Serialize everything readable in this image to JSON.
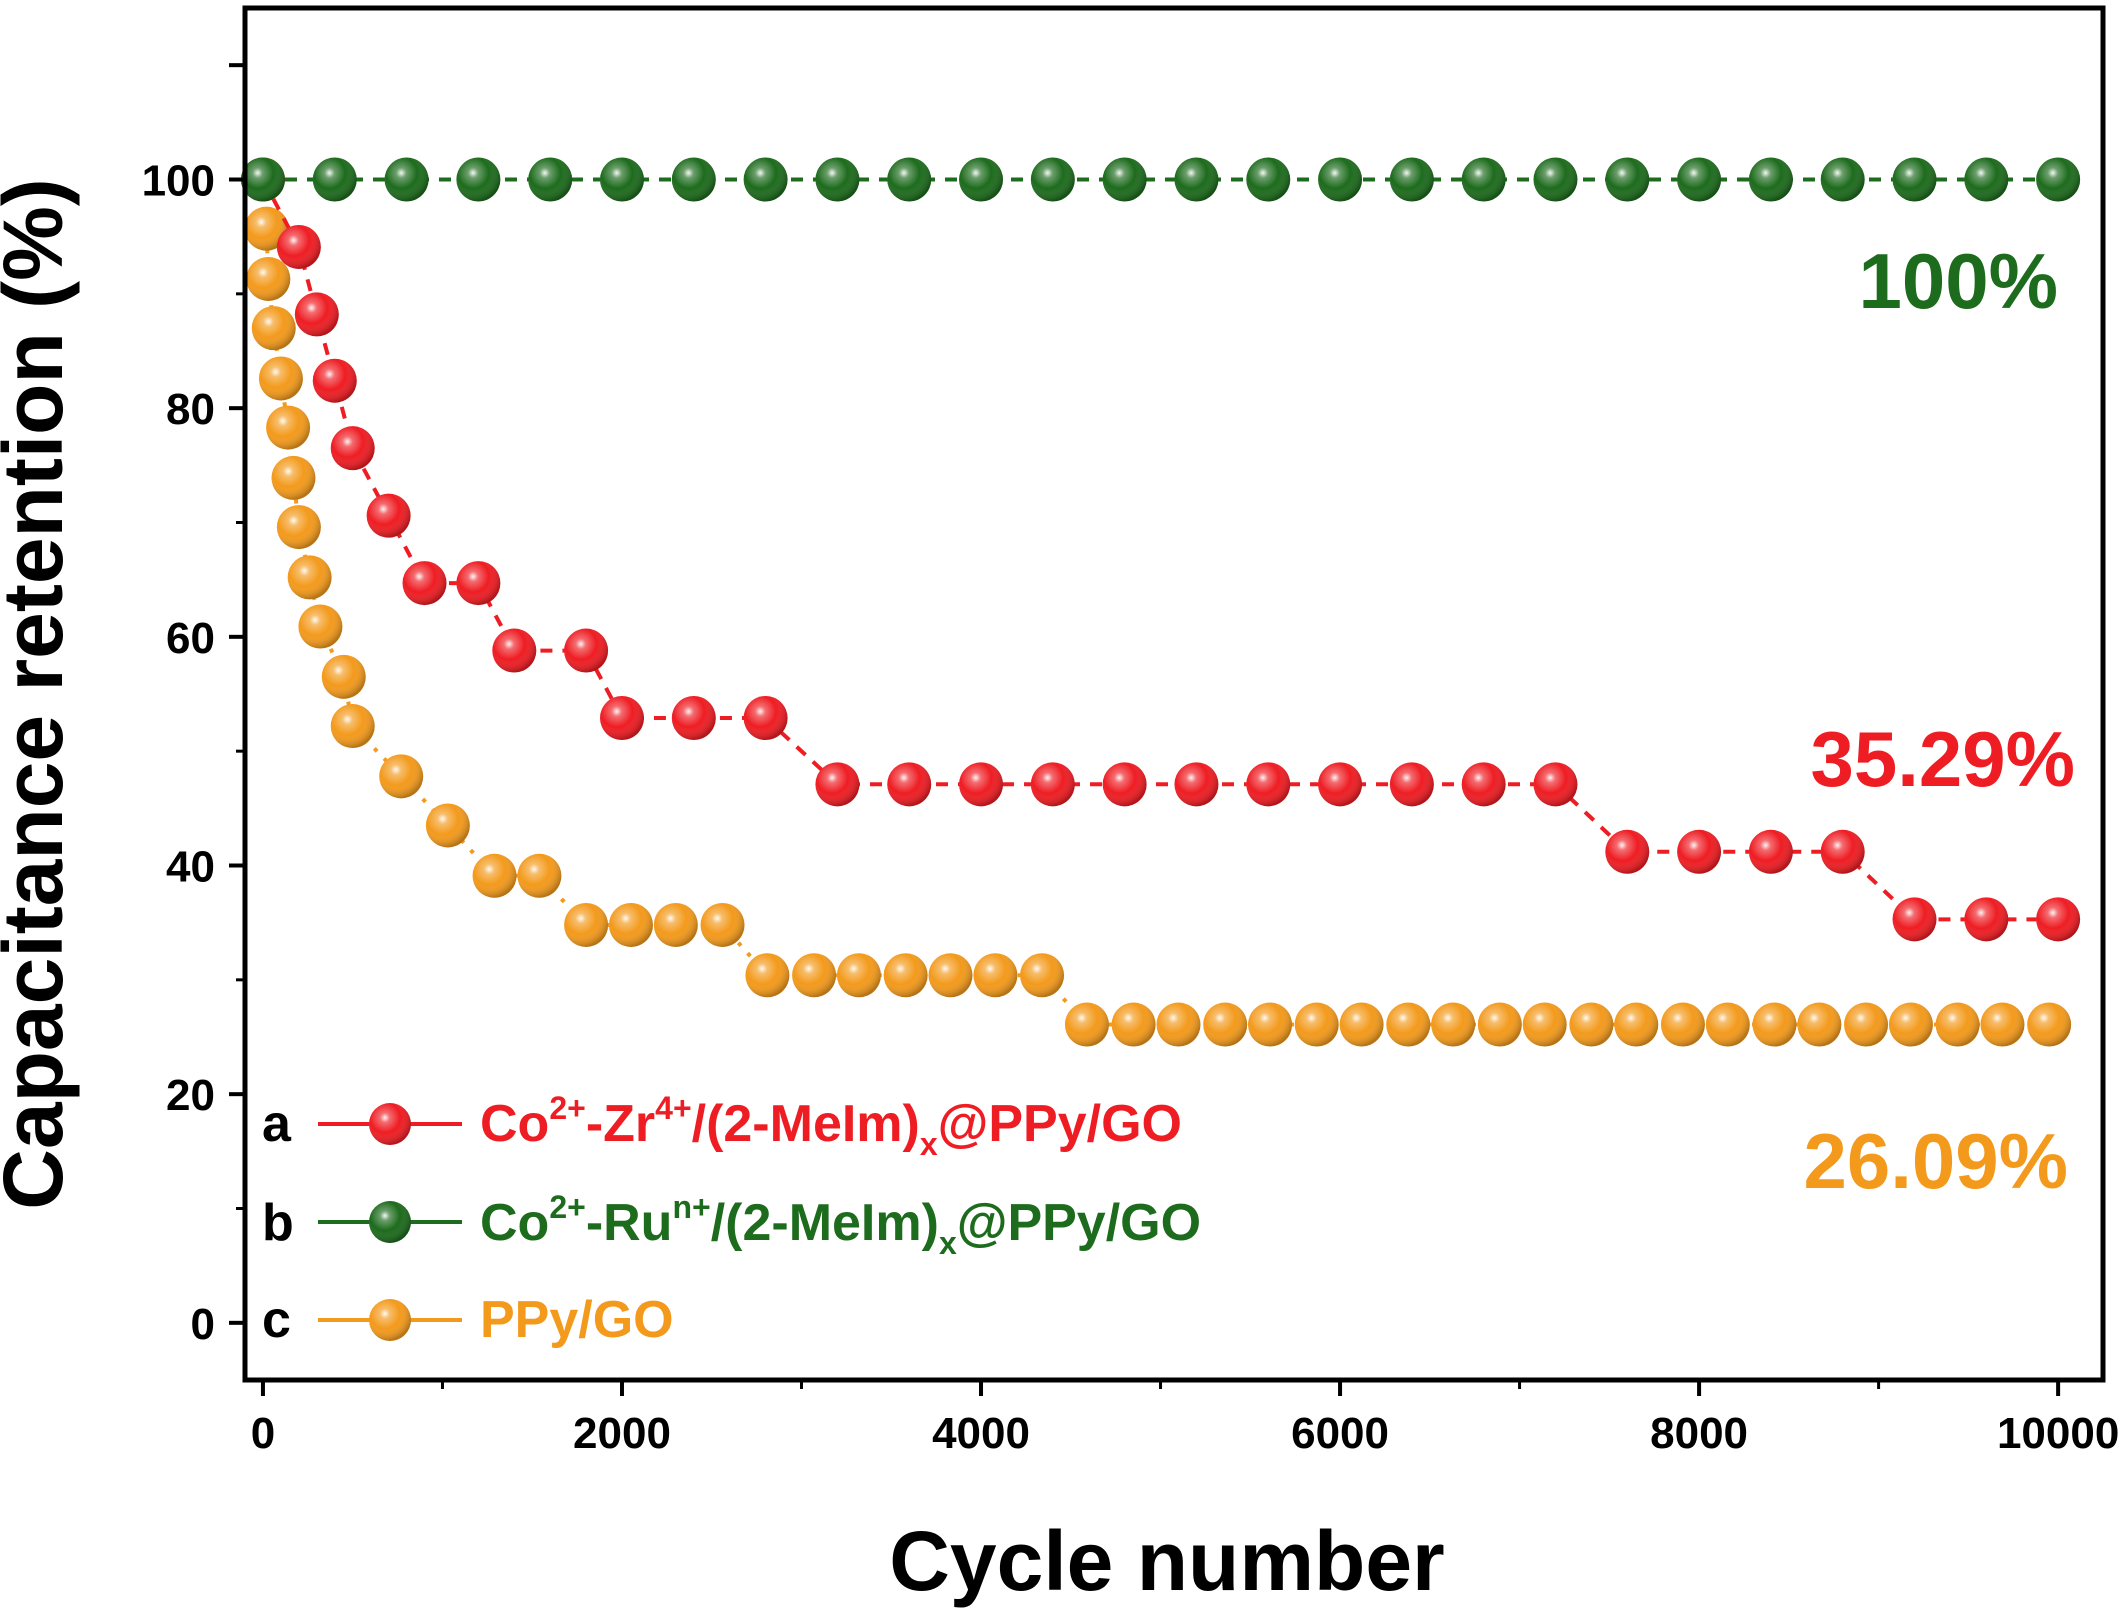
{
  "chart_data": {
    "type": "scatter",
    "xlabel": "Cycle number",
    "ylabel": "Capacitance retention (%)",
    "xlim": [
      -100,
      10250
    ],
    "ylim": [
      -5,
      115
    ],
    "x_ticks": [
      "0",
      "2000",
      "4000",
      "6000",
      "8000",
      "10000"
    ],
    "y_ticks": [
      "0",
      "20",
      "40",
      "60",
      "80",
      "100"
    ],
    "grid": false,
    "legend_position": "bottom-left",
    "series": [
      {
        "key": "a",
        "name": "Co²⁺-Zr⁴⁺/(2-MeIm)ₓ@PPy/GO",
        "name_parts": {
          "base1": "Co",
          "sup1": "2+",
          "mid": "-Zr",
          "sup2": "4+",
          "mid2": "/(2-MeIm)",
          "sub": "x",
          "tail": "@PPy/GO"
        },
        "color": "#ee1d23",
        "line_style": "dashed",
        "x": [
          0,
          200,
          300,
          400,
          500,
          700,
          900,
          1200,
          1400,
          1800,
          2000,
          2400,
          2800,
          3200,
          3600,
          4000,
          4400,
          4800,
          5200,
          5600,
          6000,
          6400,
          6800,
          7200,
          7600,
          8000,
          8400,
          8800,
          9200,
          9600,
          10000
        ],
        "y": [
          100,
          94.1,
          88.2,
          82.4,
          76.5,
          70.6,
          64.7,
          64.7,
          58.8,
          58.8,
          52.9,
          52.9,
          52.9,
          47.1,
          47.1,
          47.1,
          47.1,
          47.1,
          47.1,
          47.1,
          47.1,
          47.1,
          47.1,
          47.1,
          41.2,
          41.2,
          41.2,
          41.2,
          35.29,
          35.29,
          35.29
        ],
        "annotation": "35.29%"
      },
      {
        "key": "b",
        "name": "Co²⁺-Ruⁿ⁺/(2-MeIm)ₓ@PPy/GO",
        "name_parts": {
          "base1": "Co",
          "sup1": "2+",
          "mid": "-Ru",
          "sup2": "n+",
          "mid2": "/(2-MeIm)",
          "sub": "x",
          "tail": "@PPy/GO"
        },
        "color": "#1d6b1d",
        "line_style": "dashed",
        "x": [
          0,
          400,
          800,
          1200,
          1600,
          2000,
          2400,
          2800,
          3200,
          3600,
          4000,
          4400,
          4800,
          5200,
          5600,
          6000,
          6400,
          6800,
          7200,
          7600,
          8000,
          8400,
          8800,
          9200,
          9600,
          10000
        ],
        "y": [
          100,
          100,
          100,
          100,
          100,
          100,
          100,
          100,
          100,
          100,
          100,
          100,
          100,
          100,
          100,
          100,
          100,
          100,
          100,
          100,
          100,
          100,
          100,
          100,
          100,
          100
        ],
        "annotation": "100%"
      },
      {
        "key": "c",
        "name": "PPy/GO",
        "name_parts": {
          "base1": "PPy/GO",
          "sup1": "",
          "mid": "",
          "sup2": "",
          "mid2": "",
          "sub": "",
          "tail": ""
        },
        "color": "#f39a1c",
        "line_style": "dotted",
        "x": [
          0,
          20,
          30,
          60,
          100,
          140,
          170,
          200,
          260,
          320,
          450,
          500,
          770,
          1030,
          1290,
          1540,
          1800,
          2050,
          2300,
          2560,
          2810,
          3070,
          3320,
          3580,
          3830,
          4080,
          4340,
          4590,
          4850,
          5100,
          5360,
          5610,
          5870,
          6120,
          6380,
          6630,
          6890,
          7140,
          7400,
          7650,
          7910,
          8160,
          8420,
          8670,
          8930,
          9180,
          9440,
          9690,
          9950
        ],
        "y": [
          100,
          95.7,
          91.3,
          87.0,
          82.6,
          78.3,
          73.9,
          69.6,
          65.2,
          60.9,
          56.5,
          52.2,
          47.8,
          43.5,
          39.1,
          39.1,
          34.8,
          34.8,
          34.8,
          34.8,
          30.4,
          30.4,
          30.4,
          30.4,
          30.4,
          30.4,
          30.4,
          26.09,
          26.09,
          26.09,
          26.09,
          26.09,
          26.09,
          26.09,
          26.09,
          26.09,
          26.09,
          26.09,
          26.09,
          26.09,
          26.09,
          26.09,
          26.09,
          26.09,
          26.09,
          26.09,
          26.09,
          26.09,
          26.09
        ],
        "annotation": "26.09%"
      }
    ]
  }
}
